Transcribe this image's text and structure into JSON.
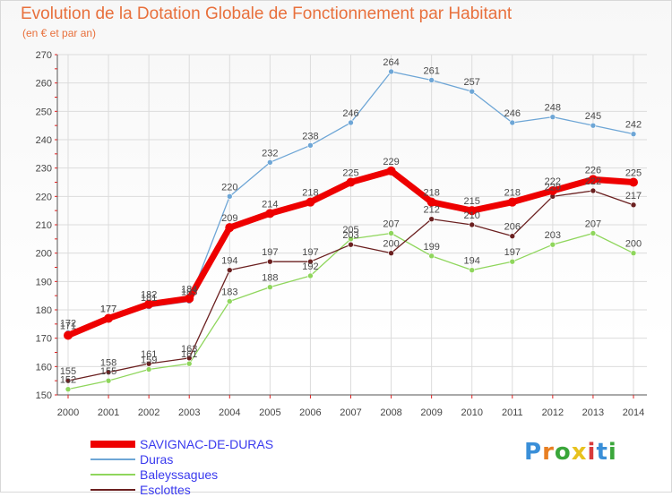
{
  "header": {
    "title": "Evolution de la Dotation Globale de Fonctionnement par Habitant",
    "subtitle": "(en € et par an)"
  },
  "logo": {
    "text": "Proxiti",
    "letter_colors": [
      "#3a8fd8",
      "#e87f22",
      "#3aa63a",
      "#e8c21e",
      "#d83a3a",
      "#3a8fd8",
      "#3aa63a"
    ]
  },
  "colors": {
    "title": "#e8703c",
    "axis_text": "#444444",
    "grid": "#dcdcdc",
    "axis": "#555555",
    "legend_text": "#3a3aee"
  },
  "chart_data": {
    "type": "line",
    "title": "Evolution de la Dotation Globale de Fonctionnement par Habitant",
    "subtitle": "(en € et par an)",
    "x": [
      "2000",
      "2001",
      "2002",
      "2003",
      "2004",
      "2005",
      "2006",
      "2007",
      "2008",
      "2009",
      "2010",
      "2011",
      "2012",
      "2013",
      "2014"
    ],
    "ylim": [
      150,
      270
    ],
    "yticks": [
      150,
      160,
      170,
      180,
      190,
      200,
      210,
      220,
      230,
      240,
      250,
      260,
      270
    ],
    "grid": true,
    "legend_position": "bottom-left",
    "series": [
      {
        "name": "SAVIGNAC-DE-DURAS",
        "color": "#ee0000",
        "width": 7,
        "values": [
          171,
          177,
          182,
          184,
          209,
          214,
          218,
          225,
          229,
          218,
          215,
          218,
          222,
          226,
          225
        ]
      },
      {
        "name": "Duras",
        "color": "#6ea6d6",
        "width": 1.3,
        "values": [
          172,
          177,
          181,
          183,
          220,
          232,
          238,
          246,
          264,
          261,
          257,
          246,
          248,
          245,
          242
        ]
      },
      {
        "name": "Baleyssagues",
        "color": "#8fd65c",
        "width": 1.3,
        "values": [
          152,
          155,
          159,
          161,
          183,
          188,
          192,
          205,
          207,
          199,
          194,
          197,
          203,
          207,
          200
        ]
      },
      {
        "name": "Esclottes",
        "color": "#6b2020",
        "width": 1.3,
        "values": [
          155,
          158,
          161,
          163,
          194,
          197,
          197,
          203,
          200,
          212,
          210,
          206,
          220,
          222,
          217
        ]
      }
    ]
  }
}
